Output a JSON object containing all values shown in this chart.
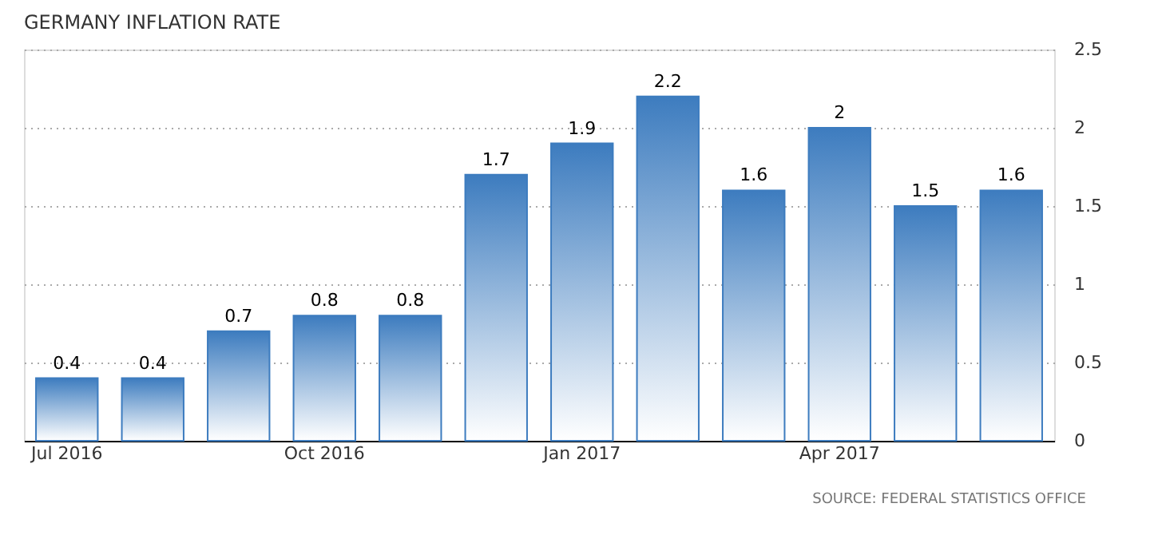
{
  "chart_data": {
    "type": "bar",
    "title": "GERMANY INFLATION RATE",
    "categories": [
      "Jul 2016",
      null,
      null,
      "Oct 2016",
      null,
      null,
      "Jan 2017",
      null,
      null,
      "Apr 2017",
      null,
      null
    ],
    "values": [
      0.4,
      0.4,
      0.7,
      0.8,
      0.8,
      1.7,
      1.9,
      2.2,
      1.6,
      2,
      1.5,
      1.6
    ],
    "color": "#3d7cbf",
    "ylim": [
      0,
      2.5
    ],
    "yticks": [
      0,
      0.5,
      1,
      1.5,
      2,
      2.5
    ],
    "grid": "y",
    "data_labels": true,
    "annotations": [
      "SOURCE: FEDERAL STATISTICS OFFICE"
    ]
  }
}
